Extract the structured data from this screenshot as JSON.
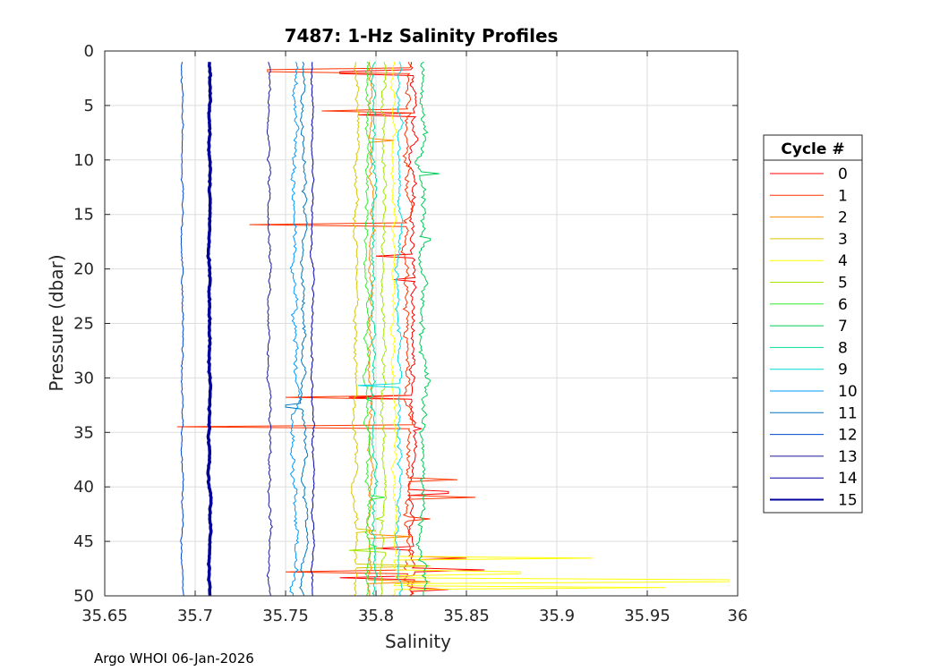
{
  "chart_data": {
    "type": "line",
    "title": "7487: 1-Hz Salinity Profiles",
    "xlabel": "Salinity",
    "ylabel": "Pressure (dbar)",
    "xlim": [
      35.65,
      36
    ],
    "ylim": [
      0,
      50
    ],
    "y_reversed": true,
    "grid": true,
    "x_ticks": [
      35.65,
      35.7,
      35.75,
      35.8,
      35.85,
      35.9,
      35.95,
      36
    ],
    "x_tick_labels": [
      "35.65",
      "35.7",
      "35.75",
      "35.8",
      "35.85",
      "35.9",
      "35.95",
      "36"
    ],
    "y_ticks": [
      0,
      5,
      10,
      15,
      20,
      25,
      30,
      35,
      40,
      45,
      50
    ],
    "y_tick_labels": [
      "0",
      "5",
      "10",
      "15",
      "20",
      "25",
      "30",
      "35",
      "40",
      "45",
      "50"
    ],
    "legend": {
      "title": "Cycle #",
      "position": "right-outside"
    },
    "series": [
      {
        "name": "0",
        "color": "#ff0000",
        "base": 35.82,
        "spikes": [
          [
            2,
            35.78
          ],
          [
            5.8,
            35.79
          ],
          [
            18.8,
            35.8
          ],
          [
            21,
            35.81
          ],
          [
            31.8,
            35.785
          ],
          [
            34.6,
            35.825
          ],
          [
            40.5,
            35.84
          ],
          [
            45.7,
            35.8
          ],
          [
            47.6,
            35.86
          ],
          [
            48.4,
            35.78
          ],
          [
            49.4,
            35.84
          ]
        ],
        "wiggle": 0.002
      },
      {
        "name": "1",
        "color": "#ff3300",
        "base": 35.818,
        "spikes": [
          [
            1.8,
            35.74
          ],
          [
            5.5,
            35.77
          ],
          [
            16,
            35.73
          ],
          [
            31.8,
            35.75
          ],
          [
            34.5,
            35.69
          ],
          [
            39.4,
            35.845
          ],
          [
            41,
            35.855
          ],
          [
            43,
            35.83
          ],
          [
            46.6,
            35.85
          ],
          [
            47.8,
            35.75
          ],
          [
            49.3,
            35.82
          ]
        ],
        "wiggle": 0.0025
      },
      {
        "name": "2",
        "color": "#ff8800",
        "base": 35.797,
        "spikes": [
          [
            8.2,
            35.81
          ],
          [
            44.5,
            35.82
          ],
          [
            48.7,
            35.83
          ]
        ],
        "wiggle": 0.0015
      },
      {
        "name": "3",
        "color": "#d9c800",
        "base": 35.789,
        "spikes": [
          [
            44,
            35.8
          ],
          [
            47.3,
            35.83
          ]
        ],
        "wiggle": 0.0015
      },
      {
        "name": "4",
        "color": "#ffff00",
        "base": 35.81,
        "spikes": [
          [
            46.5,
            35.92
          ],
          [
            48.6,
            35.995
          ],
          [
            49.2,
            35.96
          ],
          [
            47.9,
            35.88
          ]
        ],
        "wiggle": 0.0015
      },
      {
        "name": "5",
        "color": "#a6e600",
        "base": 35.804,
        "spikes": [
          [
            45.8,
            35.785
          ],
          [
            43,
            35.8
          ]
        ],
        "wiggle": 0.0015
      },
      {
        "name": "6",
        "color": "#33ee33",
        "base": 35.795,
        "spikes": [
          [
            41,
            35.805
          ],
          [
            45.5,
            35.8
          ]
        ],
        "wiggle": 0.0015
      },
      {
        "name": "7",
        "color": "#00cc55",
        "base": 35.826,
        "spikes": [
          [
            11.2,
            35.835
          ],
          [
            12,
            35.825
          ],
          [
            17.3,
            35.83
          ]
        ],
        "wiggle": 0.0025
      },
      {
        "name": "8",
        "color": "#00dd99",
        "base": 35.799,
        "spikes": [
          [
            32,
            35.795
          ]
        ],
        "wiggle": 0.0015
      },
      {
        "name": "9",
        "color": "#00dddd",
        "base": 35.813,
        "spikes": [
          [
            30.7,
            35.79
          ]
        ],
        "wiggle": 0.0015
      },
      {
        "name": "10",
        "color": "#0099ff",
        "base": 35.755,
        "spikes": [],
        "wiggle": 0.002
      },
      {
        "name": "11",
        "color": "#0077bb",
        "base": 35.76,
        "spikes": [
          [
            32.6,
            35.75
          ]
        ],
        "wiggle": 0.0015
      },
      {
        "name": "12",
        "color": "#0044cc",
        "base": 35.693,
        "spikes": [],
        "wiggle": 0.0007
      },
      {
        "name": "13",
        "color": "#1a1a99",
        "base": 35.741,
        "spikes": [],
        "wiggle": 0.001
      },
      {
        "name": "14",
        "color": "#0000aa",
        "base": 35.765,
        "spikes": [],
        "wiggle": 0.0008
      },
      {
        "name": "15",
        "color": "#000099",
        "base": 35.708,
        "spikes": [],
        "wiggle": 0.0006,
        "thick": true
      }
    ]
  },
  "footer": "Argo WHOI 06-Jan-2026"
}
